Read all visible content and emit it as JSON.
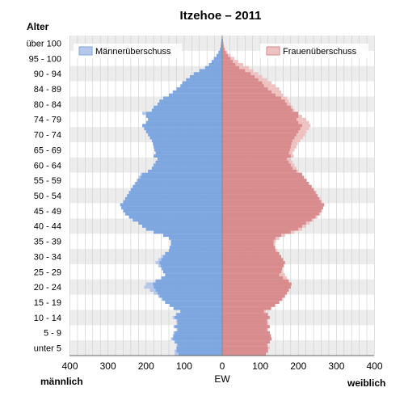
{
  "chart_data": {
    "type": "population-pyramid",
    "title": "Itzehoe – 2011",
    "y_title": "Alter",
    "x_center_label": "EW",
    "x_left_label": "männlich",
    "x_right_label": "weiblich",
    "x_ticks": [
      "400",
      "300",
      "200",
      "100",
      "0",
      "100",
      "200",
      "300",
      "400"
    ],
    "xlim": [
      -400,
      400
    ],
    "age_group_labels": [
      "unter 5",
      "5 - 9",
      "10 - 14",
      "15 - 19",
      "20 - 24",
      "25 - 29",
      "30 - 34",
      "35 - 39",
      "40 - 44",
      "45 - 49",
      "50 - 54",
      "55 - 59",
      "60 - 64",
      "65 - 69",
      "70 - 74",
      "74 - 79",
      "80 - 84",
      "84 - 89",
      "90 - 94",
      "95 - 100",
      "über 100"
    ],
    "legend": {
      "male_surplus": "Männerüberschuss",
      "female_surplus": "Frauenüberschuss"
    },
    "colors": {
      "male": "#7ea7e0",
      "male_surplus": "#b6c7ec",
      "female": "#d98c8e",
      "female_surplus": "#efc2c2",
      "band": "#ececec",
      "grid": "#cccccc"
    },
    "series": [
      {
        "name": "männlich",
        "values": [
          125,
          125,
          120,
          118,
          125,
          135,
          130,
          128,
          118,
          128,
          118,
          120,
          130,
          122,
          110,
          128,
          138,
          150,
          158,
          168,
          180,
          190,
          205,
          200,
          175,
          160,
          150,
          155,
          160,
          168,
          175,
          168,
          160,
          150,
          140,
          138,
          135,
          135,
          140,
          155,
          180,
          200,
          210,
          220,
          235,
          245,
          255,
          260,
          265,
          268,
          260,
          255,
          250,
          245,
          240,
          235,
          230,
          225,
          220,
          215,
          195,
          185,
          180,
          175,
          170,
          180,
          175,
          178,
          180,
          182,
          185,
          190,
          195,
          200,
          205,
          210,
          200,
          195,
          200,
          210,
          185,
          180,
          170,
          165,
          155,
          140,
          130,
          120,
          110,
          105,
          95,
          85,
          75,
          60,
          45,
          35,
          28,
          22,
          15,
          10,
          6,
          4,
          3,
          2,
          1
        ]
      },
      {
        "name": "weiblich",
        "values": [
          115,
          120,
          125,
          120,
          125,
          130,
          128,
          125,
          120,
          125,
          122,
          118,
          125,
          120,
          115,
          130,
          140,
          150,
          158,
          165,
          170,
          175,
          180,
          182,
          175,
          170,
          165,
          160,
          158,
          162,
          165,
          160,
          155,
          150,
          145,
          140,
          138,
          140,
          150,
          165,
          190,
          210,
          220,
          230,
          240,
          250,
          258,
          262,
          265,
          268,
          262,
          258,
          252,
          248,
          242,
          235,
          228,
          222,
          215,
          210,
          200,
          195,
          190,
          185,
          180,
          188,
          185,
          190,
          195,
          198,
          205,
          212,
          218,
          222,
          228,
          232,
          228,
          220,
          210,
          200,
          190,
          185,
          180,
          175,
          170,
          160,
          155,
          150,
          140,
          130,
          118,
          105,
          95,
          82,
          70,
          55,
          42,
          32,
          22,
          14,
          8,
          5,
          3,
          2,
          1
        ]
      }
    ]
  }
}
